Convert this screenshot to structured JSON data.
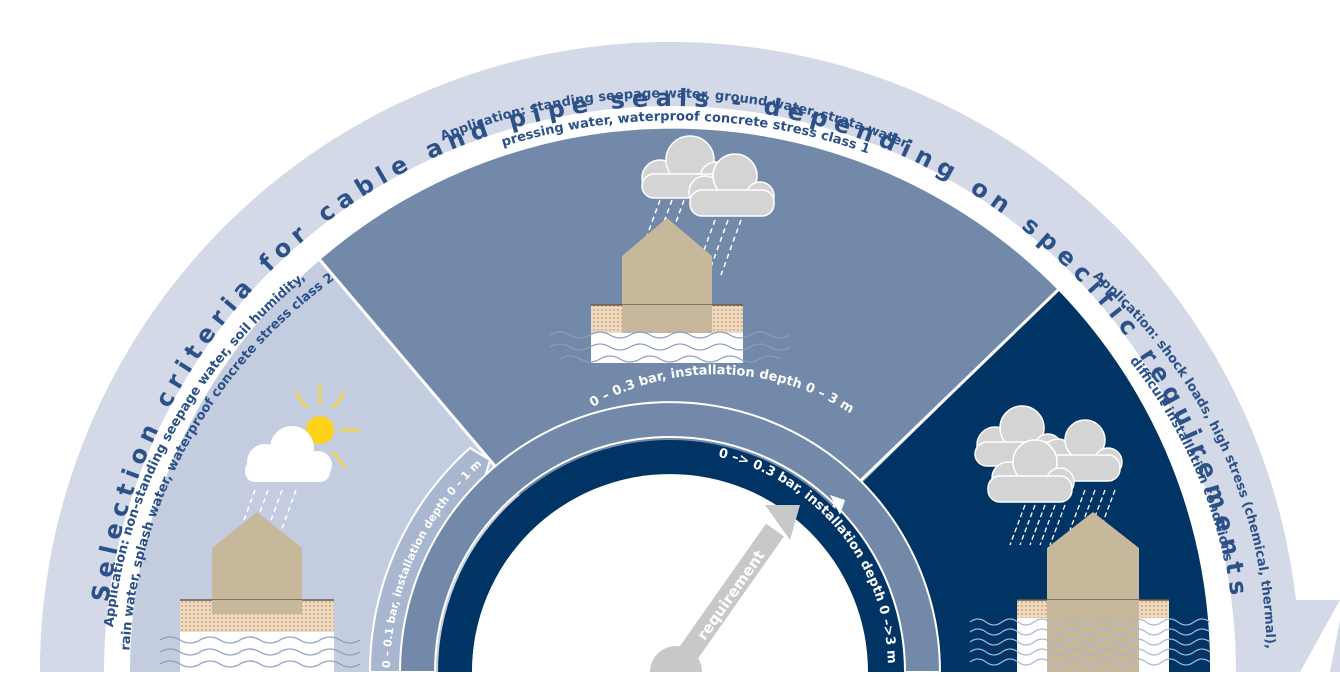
{
  "title": "Selection criteria for cable and pipe seals - depending on specific requirements",
  "sectors": {
    "left": {
      "application_line1": "Application: non-standing seepage water, soil humidity,",
      "application_line2": "rain water, splash water, waterproof concrete stress class 2",
      "icons": [
        "sun-icon",
        "cloud-icon",
        "rain-icon",
        "house-icon",
        "soil-icon",
        "groundwater-icon"
      ]
    },
    "middle": {
      "application_line1": "Application: standing seepage water, ground water, strata water,",
      "application_line2": "pressing water, waterproof concrete stress class 1",
      "icons": [
        "cloud-icon",
        "cloud-icon",
        "rain-icon",
        "house-icon",
        "soil-icon",
        "groundwater-icon"
      ]
    },
    "right": {
      "application_line1": "Application: shock loads, high stress (chemical, thermal),",
      "application_line2": "difficult installation conditions",
      "icons": [
        "cloud-icon",
        "cloud-icon",
        "cloud-icon",
        "heavy-rain-icon",
        "house-icon",
        "soil-icon",
        "groundwater-icon"
      ]
    }
  },
  "pressure_bands": {
    "band1": "0 – 0.1 bar, installation depth 0 – 1 m",
    "band2": "0 – 0.3 bar, installation depth 0 – 3 m",
    "band3": "0 –> 0.3 bar, installation depth 0 –>3 m"
  },
  "gauge_label": "requirement",
  "colors": {
    "outer_ring": "#d3d9e7",
    "sector_left": "#c4ccdf",
    "sector_middle": "#7389aa",
    "sector_right": "#003464",
    "band1": "#a9b6cf",
    "band2": "#7389aa",
    "band3": "#003464",
    "title_text": "#2c5189",
    "sun": "#ffd21a",
    "house": "#c7b79b",
    "soil": "#ead2b6",
    "cloud": "#c8c8c8",
    "arrow": "#c8c8c8"
  }
}
